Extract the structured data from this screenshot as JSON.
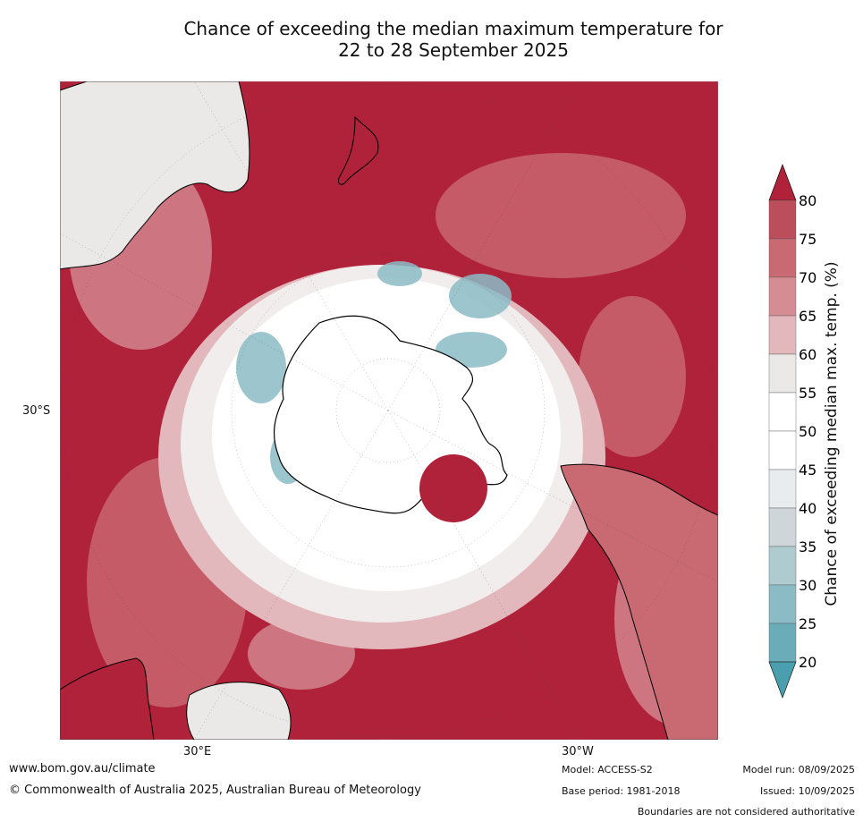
{
  "title": {
    "line1": "Chance of exceeding the median maximum temperature for",
    "line2": "22 to 28 September 2025"
  },
  "axis": {
    "lat_label": "30°S",
    "lon_left": "30°E",
    "lon_right": "30°W"
  },
  "colorbar": {
    "label": "Chance of exceeding median max. temp. (%)",
    "ticks": [
      "20",
      "25",
      "30",
      "35",
      "40",
      "45",
      "50",
      "55",
      "60",
      "65",
      "70",
      "75",
      "80"
    ],
    "colors": [
      "#4a9fae",
      "#6aadb9",
      "#8bbcc6",
      "#aecbd0",
      "#ced6d9",
      "#e8ecee",
      "#ffffff",
      "#ffffff",
      "#ebe8e8",
      "#e2b8bc",
      "#d58c93",
      "#c96a73",
      "#bb4e5a",
      "#b0213a"
    ]
  },
  "footer": {
    "url": "www.bom.gov.au/climate",
    "copyright": "© Commonwealth of Australia 2025, Australian Bureau of Meteorology",
    "model": "Model: ACCESS-S2",
    "base_period": "Base period: 1981-2018",
    "model_run": "Model run: 08/09/2025",
    "issued": "Issued: 10/09/2025",
    "boundaries": "Boundaries are not considered authoritative"
  }
}
